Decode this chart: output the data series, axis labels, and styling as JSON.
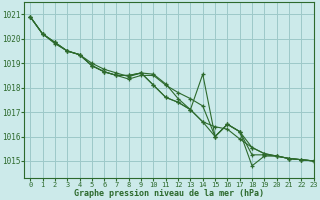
{
  "title": "Graphe pression niveau de la mer (hPa)",
  "bg_color": "#cceaea",
  "grid_color": "#9dc8c8",
  "line_color": "#2d6a2d",
  "xlim": [
    -0.5,
    23
  ],
  "ylim": [
    1014.3,
    1021.5
  ],
  "yticks": [
    1015,
    1016,
    1017,
    1018,
    1019,
    1020,
    1021
  ],
  "xticks": [
    0,
    1,
    2,
    3,
    4,
    5,
    6,
    7,
    8,
    9,
    10,
    11,
    12,
    13,
    14,
    15,
    16,
    17,
    18,
    19,
    20,
    21,
    22,
    23
  ],
  "series": [
    [
      1020.9,
      1020.2,
      1019.8,
      1019.5,
      1019.35,
      1018.9,
      1018.65,
      1018.5,
      1018.35,
      1018.5,
      1018.5,
      1018.1,
      1017.8,
      1017.55,
      1017.25,
      1016.0,
      1016.5,
      1016.2,
      1015.25,
      1015.25,
      1015.2,
      1015.1,
      1015.05,
      1015.0
    ],
    [
      1020.9,
      1020.2,
      1019.85,
      1019.5,
      1019.35,
      1018.9,
      1018.65,
      1018.5,
      1018.5,
      1018.6,
      1018.1,
      1017.6,
      1017.4,
      1017.1,
      1016.6,
      1016.4,
      1016.3,
      1015.9,
      1015.55,
      1015.3,
      1015.2,
      1015.1,
      1015.05,
      1015.0
    ],
    [
      1020.9,
      1020.2,
      1019.85,
      1019.5,
      1019.35,
      1018.9,
      1018.65,
      1018.5,
      1018.5,
      1018.6,
      1018.1,
      1017.6,
      1017.4,
      1017.1,
      1016.6,
      1016.0,
      1016.5,
      1016.2,
      1014.8,
      1015.2,
      1015.2,
      1015.1,
      1015.05,
      1015.0
    ],
    [
      1020.9,
      1020.2,
      1019.85,
      1019.5,
      1019.35,
      1019.0,
      1018.75,
      1018.6,
      1018.45,
      1018.6,
      1018.55,
      1018.15,
      1017.55,
      1017.1,
      1018.55,
      1016.0,
      1016.5,
      1016.2,
      1015.55,
      1015.3,
      1015.2,
      1015.1,
      1015.05,
      1015.0
    ]
  ]
}
